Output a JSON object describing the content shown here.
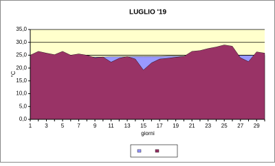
{
  "chart_data": {
    "type": "area",
    "title": "LUGLIO '19",
    "x_label": "giorni",
    "y_label": "°C",
    "x": [
      1,
      2,
      3,
      4,
      5,
      6,
      7,
      8,
      9,
      10,
      11,
      12,
      13,
      14,
      15,
      16,
      17,
      18,
      19,
      20,
      21,
      22,
      23,
      24,
      25,
      26,
      27,
      28,
      29,
      30
    ],
    "xlim": [
      1,
      30
    ],
    "xticks": [
      1,
      3,
      5,
      7,
      9,
      11,
      13,
      15,
      17,
      19,
      21,
      23,
      25,
      27,
      29
    ],
    "ylim": [
      0,
      35
    ],
    "yticks": [
      {
        "value": 0,
        "label": "0,0"
      },
      {
        "value": 5,
        "label": "5,0"
      },
      {
        "value": 10,
        "label": "10,0"
      },
      {
        "value": 15,
        "label": "15,0"
      },
      {
        "value": 20,
        "label": "20,0"
      },
      {
        "value": 25,
        "label": "25,0"
      },
      {
        "value": 30,
        "label": "30,0"
      },
      {
        "value": 35,
        "label": "35,0"
      }
    ],
    "grid": true,
    "background": "#ffffcc",
    "series": [
      {
        "color": "#9999ff",
        "values": [
          24.0,
          24.0,
          24.1,
          24.1,
          24.2,
          24.2,
          24.2,
          24.3,
          24.3,
          24.3,
          24.4,
          24.4,
          24.4,
          24.5,
          24.5,
          24.5,
          24.5,
          24.6,
          24.6,
          24.6,
          24.7,
          24.7,
          24.7,
          24.8,
          24.8,
          24.8,
          24.9,
          24.9,
          25.0,
          25.0
        ]
      },
      {
        "color": "#993366",
        "values": [
          25.0,
          26.5,
          25.8,
          25.2,
          26.5,
          25.0,
          25.5,
          25.0,
          24.0,
          24.3,
          22.3,
          23.8,
          24.5,
          23.5,
          19.2,
          22.0,
          23.5,
          23.8,
          24.2,
          24.5,
          26.5,
          26.8,
          27.6,
          28.2,
          29.0,
          28.5,
          24.0,
          22.5,
          26.3,
          25.8
        ]
      }
    ]
  }
}
